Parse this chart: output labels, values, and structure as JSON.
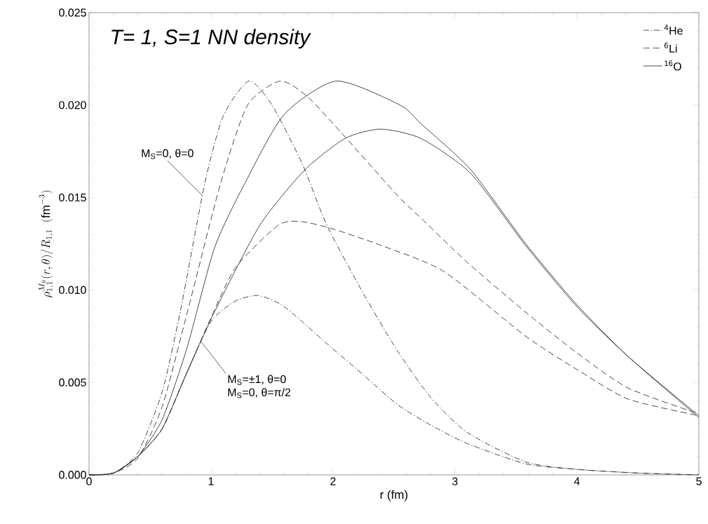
{
  "chart_data": {
    "type": "line",
    "title": "T= 1, S=1 NN density",
    "xlabel": "r (fm)",
    "ylabel": "\\rho^{M_S}_{1,1}(r,\\theta)/R_{1,1}\\ \\ (\\mathrm{fm}^{-3})",
    "xlim": [
      0,
      5
    ],
    "ylim": [
      0,
      0.025
    ],
    "xticks": [
      0,
      1,
      2,
      3,
      4,
      5
    ],
    "yticks": [
      {
        "value": 0,
        "label": "0.000"
      },
      {
        "value": 0.005,
        "label": "0.005"
      },
      {
        "value": 0.01,
        "label": "0.010"
      },
      {
        "value": 0.015,
        "label": "0.015"
      },
      {
        "value": 0.02,
        "label": "0.020"
      },
      {
        "value": 0.025,
        "label": "0.025"
      }
    ],
    "grid": false,
    "legend": "top right",
    "marker": "none",
    "annotations": [
      {
        "text": "M$_{S}$=0, θ=0",
        "x": 0.93,
        "y": 0.0151
      },
      {
        "text": "M$_{S}$=±1, θ=0",
        "x": 0.92,
        "y": 0.0072
      },
      "M$_{S}$=0, θ=π/2"
    ],
    "series": [
      {
        "name": "$^{4}$He",
        "color": "#333333",
        "line_style": "dashdot",
        "x": [
          0,
          0.2,
          0.4,
          0.6,
          0.75,
          0.95,
          1.1,
          1.31,
          1.5,
          1.75,
          1.95,
          2.25,
          2.53,
          2.8,
          3.1,
          3.58,
          4,
          4.5,
          5
        ],
        "values": [
          0,
          0.0001,
          0.0012,
          0.0045,
          0.0089,
          0.0158,
          0.0194,
          0.0213,
          0.02,
          0.0168,
          0.0135,
          0.0098,
          0.0067,
          0.0042,
          0.0023,
          0.0007,
          0.0003,
          0.0001,
          0
        ]
      },
      {
        "color": "#333333",
        "line_style": "dashdot",
        "x": [
          0,
          0.2,
          0.4,
          0.6,
          0.8,
          1.0,
          1.2,
          1.39,
          1.6,
          1.95,
          2.25,
          2.53,
          2.8,
          3.1,
          3.58,
          4,
          4.5,
          5
        ],
        "values": [
          0,
          0.0001,
          0.001,
          0.0025,
          0.0055,
          0.0083,
          0.0094,
          0.0097,
          0.0091,
          0.0071,
          0.0054,
          0.0038,
          0.0027,
          0.0017,
          0.0006,
          0.0003,
          0.0001,
          0
        ]
      },
      {
        "name": "$^{6}$Li",
        "color": "#333333",
        "line_style": "dashed",
        "x": [
          0,
          0.2,
          0.4,
          0.6,
          0.81,
          1.08,
          1.3,
          1.57,
          1.8,
          2.11,
          2.53,
          2.72,
          3.1,
          3.58,
          4,
          4.42,
          5
        ],
        "values": [
          0,
          0.0001,
          0.0009,
          0.0037,
          0.0089,
          0.0158,
          0.02,
          0.0213,
          0.0204,
          0.0182,
          0.0151,
          0.0139,
          0.0115,
          0.0088,
          0.0066,
          0.0047,
          0.0033
        ]
      },
      {
        "color": "#333333",
        "line_style": "dashed",
        "x": [
          0,
          0.2,
          0.4,
          0.6,
          0.8,
          1.0,
          1.2,
          1.55,
          1.74,
          2.0,
          2.4,
          2.91,
          3.58,
          4,
          4.42,
          5
        ],
        "values": [
          0,
          0.0001,
          0.001,
          0.0025,
          0.0055,
          0.0085,
          0.0112,
          0.0135,
          0.0137,
          0.0133,
          0.0124,
          0.011,
          0.0075,
          0.0057,
          0.0041,
          0.0032
        ]
      },
      {
        "name": "$^{16}$O",
        "color": "#333333",
        "line_style": "solid",
        "x": [
          0,
          0.2,
          0.4,
          0.6,
          0.8,
          1.03,
          1.28,
          1.6,
          2.03,
          2.55,
          2.72,
          3.13,
          3.58,
          4,
          4.42,
          5
        ],
        "values": [
          0,
          0.0001,
          0.001,
          0.003,
          0.0068,
          0.0123,
          0.0158,
          0.0195,
          0.0213,
          0.02,
          0.019,
          0.0165,
          0.0125,
          0.0092,
          0.0064,
          0.0031
        ]
      },
      {
        "color": "#333333",
        "line_style": "solid",
        "x": [
          0,
          0.2,
          0.4,
          0.6,
          0.8,
          1.02,
          1.4,
          1.77,
          2.1,
          2.39,
          2.72,
          3.13,
          3.58,
          4,
          4.42,
          5
        ],
        "values": [
          0,
          0.0001,
          0.001,
          0.0025,
          0.0055,
          0.0087,
          0.0135,
          0.0165,
          0.0182,
          0.0187,
          0.0182,
          0.0163,
          0.0124,
          0.0091,
          0.0064,
          0.0032
        ]
      }
    ]
  }
}
